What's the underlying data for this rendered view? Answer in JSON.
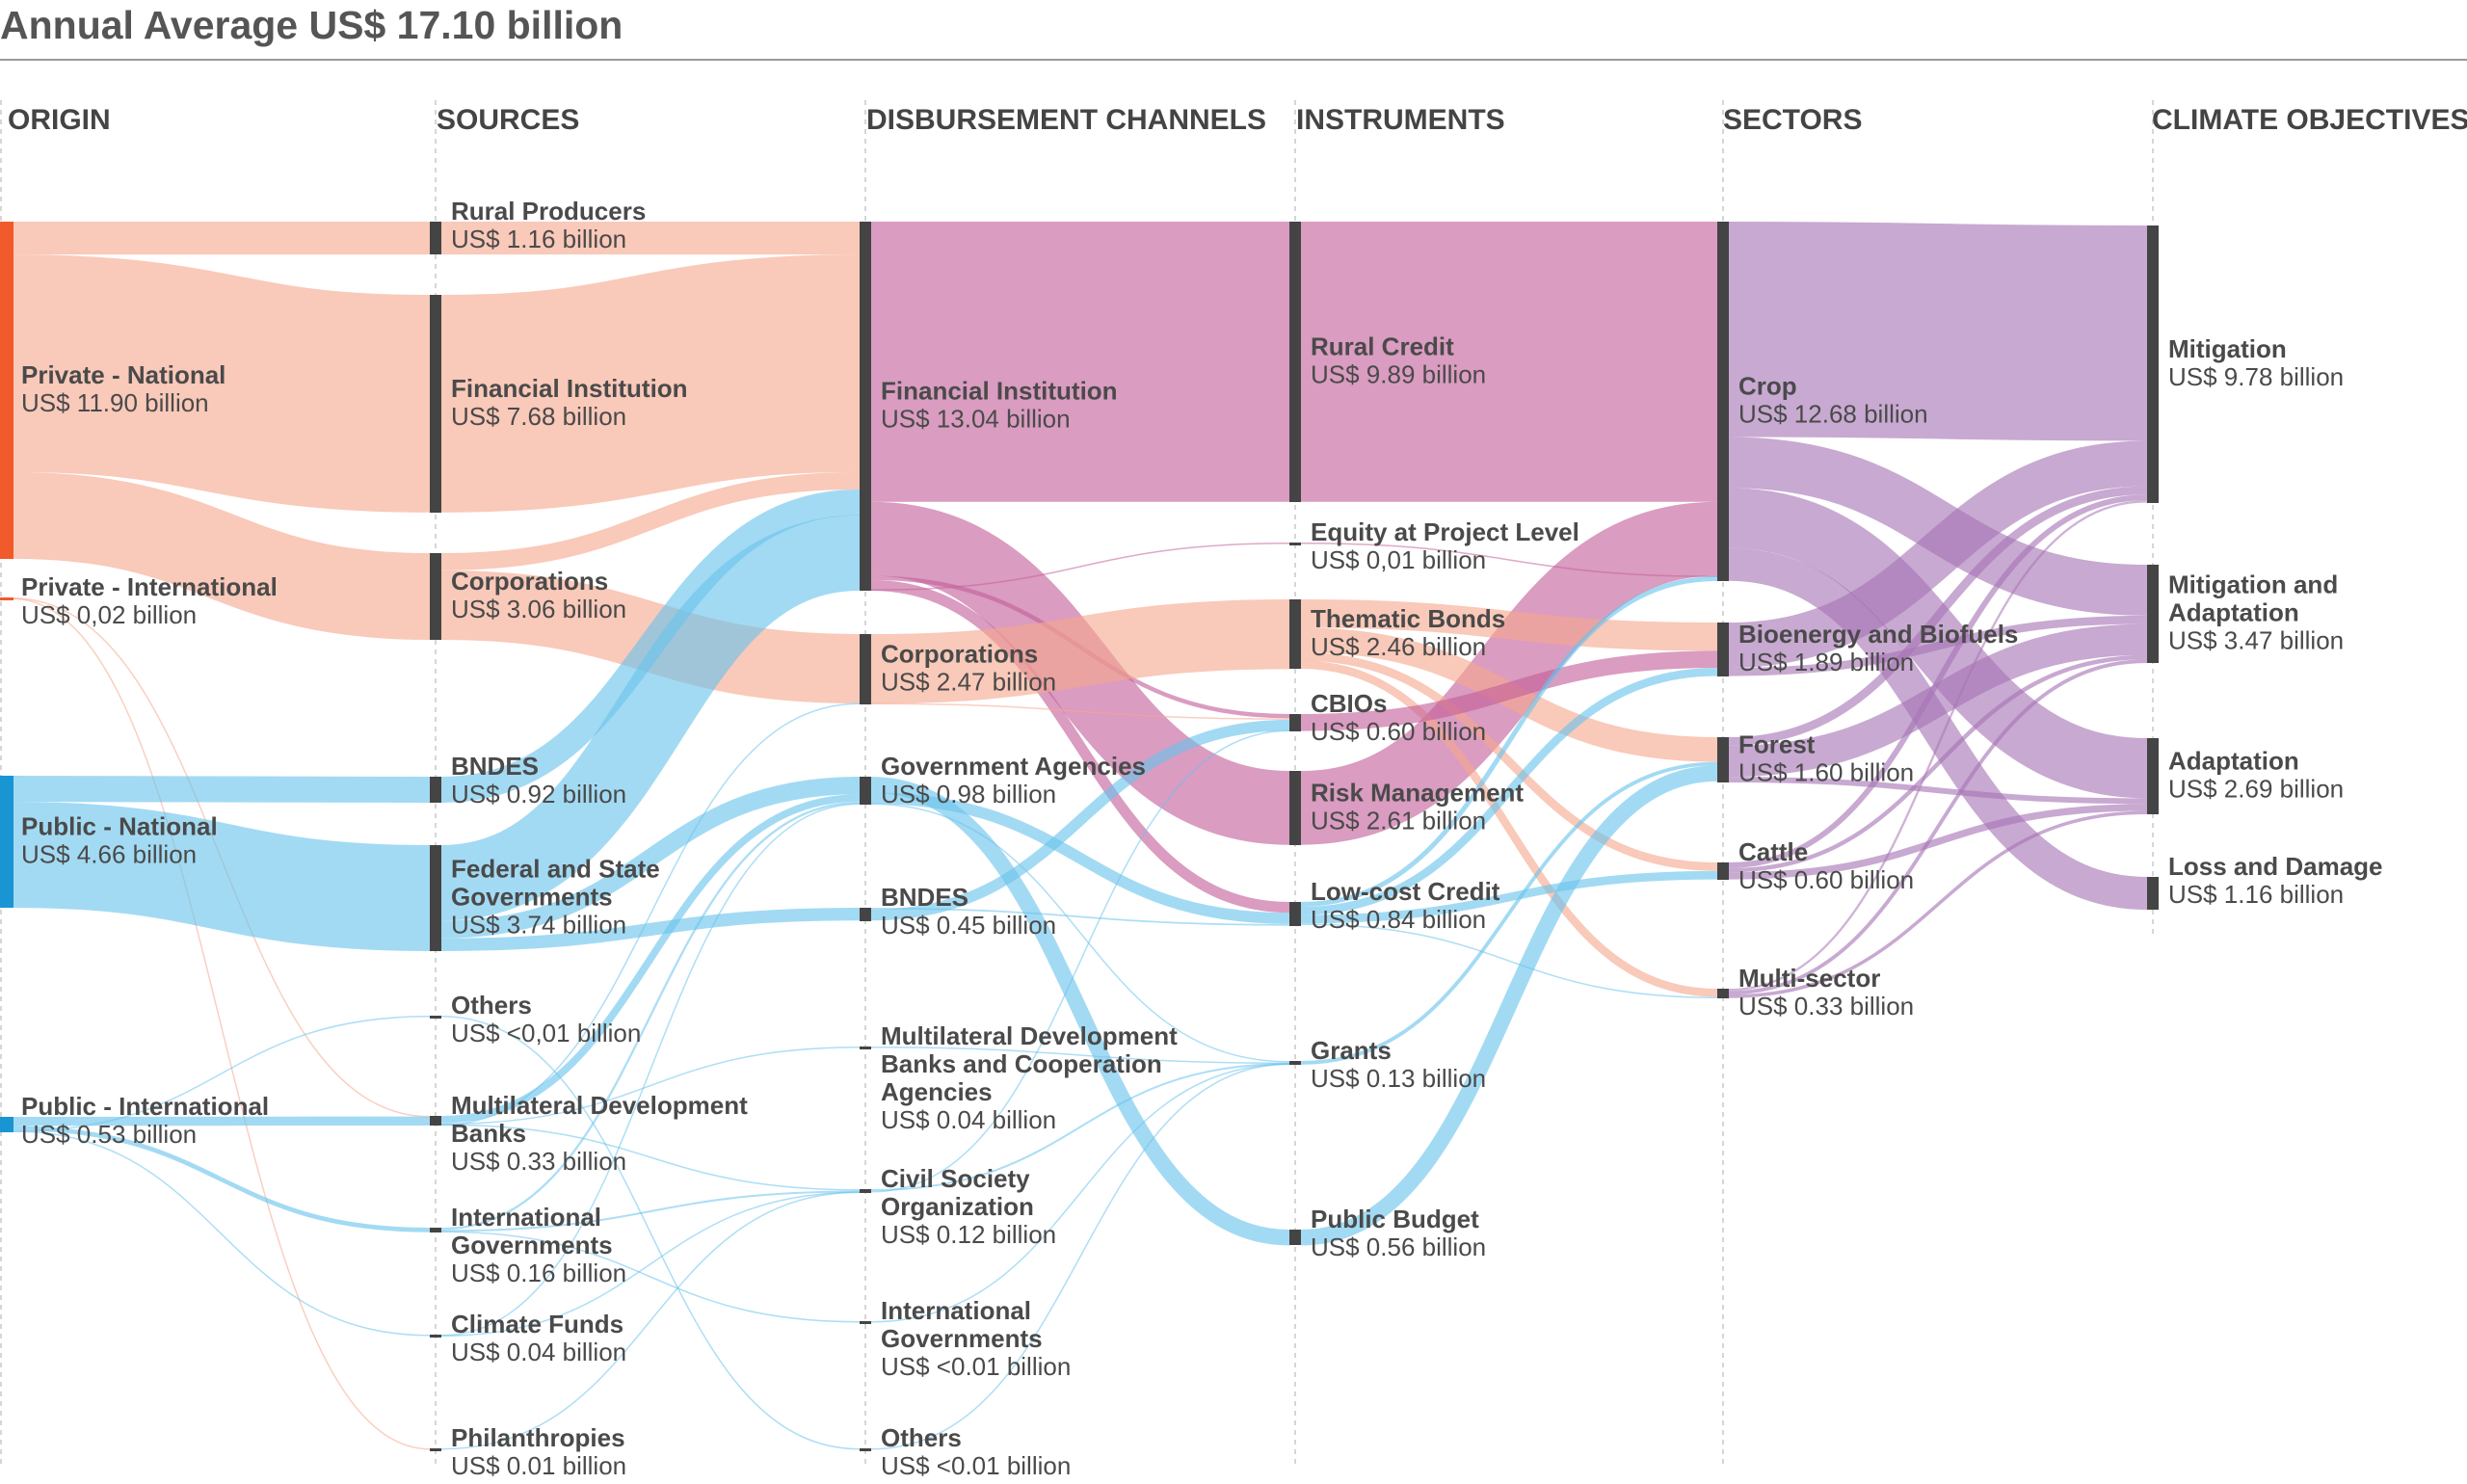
{
  "title": "Annual Average US$ 17.10 billion",
  "columns": [
    "ORIGIN",
    "SOURCES",
    "DISBURSEMENT CHANNELS",
    "INSTRUMENTS",
    "SECTORS",
    "CLIMATE OBJECTIVES"
  ],
  "colors": {
    "private": "#f5a88e",
    "public": "#69c3ec",
    "channel": "#c4609a",
    "sector": "#a774b5",
    "objective": "#b78fc5",
    "private_bar": "#f15a2b",
    "public_bar": "#1a95d4",
    "node_bar": "#444444"
  },
  "nodes": [
    {
      "id": "o_pn",
      "col": 0,
      "name": "Private - National",
      "value_label": "US$ 11.90 billion",
      "value": 11.9
    },
    {
      "id": "o_pi",
      "col": 0,
      "name": "Private - International",
      "value_label": "US$ 0,02 billion",
      "value": 0.02
    },
    {
      "id": "o_pun",
      "col": 0,
      "name": "Public - National",
      "value_label": "US$ 4.66 billion",
      "value": 4.66
    },
    {
      "id": "o_pui",
      "col": 0,
      "name": "Public - International",
      "value_label": "US$ 0.53 billion",
      "value": 0.53
    },
    {
      "id": "s_rp",
      "col": 1,
      "name": "Rural Producers",
      "value_label": "US$ 1.16 billion",
      "value": 1.16
    },
    {
      "id": "s_fi",
      "col": 1,
      "name": "Financial Institution",
      "value_label": "US$ 7.68 billion",
      "value": 7.68
    },
    {
      "id": "s_co",
      "col": 1,
      "name": "Corporations",
      "value_label": "US$ 3.06 billion",
      "value": 3.06
    },
    {
      "id": "s_bn",
      "col": 1,
      "name": "BNDES",
      "value_label": "US$ 0.92 billion",
      "value": 0.92
    },
    {
      "id": "s_fs",
      "col": 1,
      "name": "Federal and State Governments",
      "value_label": "US$ 3.74 billion",
      "value": 3.74
    },
    {
      "id": "s_ot",
      "col": 1,
      "name": "Others",
      "value_label": "US$ <0,01 billion",
      "value": 0.01
    },
    {
      "id": "s_md",
      "col": 1,
      "name": "Multilateral Development Banks",
      "value_label": "US$ 0.33 billion",
      "value": 0.33
    },
    {
      "id": "s_ig",
      "col": 1,
      "name": "International Governments",
      "value_label": "US$ 0.16 billion",
      "value": 0.16
    },
    {
      "id": "s_cf",
      "col": 1,
      "name": "Climate Funds",
      "value_label": "US$ 0.04 billion",
      "value": 0.04
    },
    {
      "id": "s_ph",
      "col": 1,
      "name": "Philanthropies",
      "value_label": "US$ 0.01 billion",
      "value": 0.01
    },
    {
      "id": "d_fi",
      "col": 2,
      "name": "Financial Institution",
      "value_label": "US$ 13.04 billion",
      "value": 13.04
    },
    {
      "id": "d_co",
      "col": 2,
      "name": "Corporations",
      "value_label": "US$ 2.47 billion",
      "value": 2.47
    },
    {
      "id": "d_ga",
      "col": 2,
      "name": "Government Agencies",
      "value_label": "US$ 0.98 billion",
      "value": 0.98
    },
    {
      "id": "d_bn",
      "col": 2,
      "name": "BNDES",
      "value_label": "US$ 0.45 billion",
      "value": 0.45
    },
    {
      "id": "d_md",
      "col": 2,
      "name": "Multilateral Development Banks and Cooperation Agencies",
      "value_label": "US$ 0.04 billion",
      "value": 0.04
    },
    {
      "id": "d_cs",
      "col": 2,
      "name": "Civil Society Organization",
      "value_label": "US$ 0.12 billion",
      "value": 0.12
    },
    {
      "id": "d_ig",
      "col": 2,
      "name": "International Governments",
      "value_label": "US$ <0.01 billion",
      "value": 0.01
    },
    {
      "id": "d_ot",
      "col": 2,
      "name": "Others",
      "value_label": "US$ <0.01 billion",
      "value": 0.01
    },
    {
      "id": "i_rc",
      "col": 3,
      "name": "Rural Credit",
      "value_label": "US$ 9.89 billion",
      "value": 9.89
    },
    {
      "id": "i_eq",
      "col": 3,
      "name": "Equity at Project Level",
      "value_label": "US$ 0,01 billion",
      "value": 0.01
    },
    {
      "id": "i_tb",
      "col": 3,
      "name": "Thematic Bonds",
      "value_label": "US$ 2.46 billion",
      "value": 2.46
    },
    {
      "id": "i_cb",
      "col": 3,
      "name": "CBIOs",
      "value_label": "US$ 0.60 billion",
      "value": 0.6
    },
    {
      "id": "i_rm",
      "col": 3,
      "name": "Risk Management",
      "value_label": "US$ 2.61 billion",
      "value": 2.61
    },
    {
      "id": "i_lc",
      "col": 3,
      "name": "Low-cost Credit",
      "value_label": "US$ 0.84 billion",
      "value": 0.84
    },
    {
      "id": "i_gr",
      "col": 3,
      "name": "Grants",
      "value_label": "US$ 0.13 billion",
      "value": 0.13
    },
    {
      "id": "i_pb",
      "col": 3,
      "name": "Public Budget",
      "value_label": "US$ 0.56 billion",
      "value": 0.56
    },
    {
      "id": "t_cr",
      "col": 4,
      "name": "Crop",
      "value_label": "US$ 12.68 billion",
      "value": 12.68
    },
    {
      "id": "t_bb",
      "col": 4,
      "name": "Bioenergy and Biofuels",
      "value_label": "US$ 1.89 billion",
      "value": 1.89
    },
    {
      "id": "t_fo",
      "col": 4,
      "name": "Forest",
      "value_label": "US$ 1.60 billion",
      "value": 1.6
    },
    {
      "id": "t_ca",
      "col": 4,
      "name": "Cattle",
      "value_label": "US$ 0.60 billion",
      "value": 0.6
    },
    {
      "id": "t_ms",
      "col": 4,
      "name": "Multi-sector",
      "value_label": "US$ 0.33 billion",
      "value": 0.33
    },
    {
      "id": "c_mi",
      "col": 5,
      "name": "Mitigation",
      "value_label": "US$ 9.78 billion",
      "value": 9.78
    },
    {
      "id": "c_ma",
      "col": 5,
      "name": "Mitigation and Adaptation",
      "value_label": "US$ 3.47 billion",
      "value": 3.47
    },
    {
      "id": "c_ad",
      "col": 5,
      "name": "Adaptation",
      "value_label": "US$ 2.69 billion",
      "value": 2.69
    },
    {
      "id": "c_ld",
      "col": 5,
      "name": "Loss and Damage",
      "value_label": "US$ 1.16 billion",
      "value": 1.16
    }
  ],
  "flows": [
    {
      "from": "o_pn",
      "to": "s_rp",
      "value": 1.16,
      "tone": "private"
    },
    {
      "from": "o_pn",
      "to": "s_fi",
      "value": 7.68,
      "tone": "private"
    },
    {
      "from": "o_pn",
      "to": "s_co",
      "value": 3.06,
      "tone": "private"
    },
    {
      "from": "o_pi",
      "to": "s_md",
      "value": 0.01,
      "tone": "private"
    },
    {
      "from": "o_pi",
      "to": "s_ph",
      "value": 0.01,
      "tone": "private"
    },
    {
      "from": "o_pun",
      "to": "s_bn",
      "value": 0.92,
      "tone": "public"
    },
    {
      "from": "o_pun",
      "to": "s_fs",
      "value": 3.74,
      "tone": "public"
    },
    {
      "from": "o_pui",
      "to": "s_md",
      "value": 0.32,
      "tone": "public"
    },
    {
      "from": "o_pui",
      "to": "s_ig",
      "value": 0.16,
      "tone": "public"
    },
    {
      "from": "o_pui",
      "to": "s_cf",
      "value": 0.04,
      "tone": "public"
    },
    {
      "from": "o_pui",
      "to": "s_ot",
      "value": 0.01,
      "tone": "public"
    },
    {
      "from": "s_rp",
      "to": "d_fi",
      "value": 1.16,
      "tone": "private"
    },
    {
      "from": "s_fi",
      "to": "d_fi",
      "value": 7.68,
      "tone": "private"
    },
    {
      "from": "s_co",
      "to": "d_fi",
      "value": 0.61,
      "tone": "private"
    },
    {
      "from": "s_co",
      "to": "d_co",
      "value": 2.45,
      "tone": "private"
    },
    {
      "from": "s_bn",
      "to": "d_fi",
      "value": 0.92,
      "tone": "public"
    },
    {
      "from": "s_fs",
      "to": "d_fi",
      "value": 2.67,
      "tone": "public"
    },
    {
      "from": "s_fs",
      "to": "d_ga",
      "value": 0.62,
      "tone": "public"
    },
    {
      "from": "s_fs",
      "to": "d_bn",
      "value": 0.45,
      "tone": "public"
    },
    {
      "from": "s_md",
      "to": "d_ga",
      "value": 0.26,
      "tone": "public"
    },
    {
      "from": "s_md",
      "to": "d_md",
      "value": 0.04,
      "tone": "public"
    },
    {
      "from": "s_md",
      "to": "d_co",
      "value": 0.02,
      "tone": "public"
    },
    {
      "from": "s_md",
      "to": "d_cs",
      "value": 0.01,
      "tone": "public"
    },
    {
      "from": "s_ig",
      "to": "d_ga",
      "value": 0.08,
      "tone": "public"
    },
    {
      "from": "s_ig",
      "to": "d_cs",
      "value": 0.07,
      "tone": "public"
    },
    {
      "from": "s_ig",
      "to": "d_ig",
      "value": 0.01,
      "tone": "public"
    },
    {
      "from": "s_cf",
      "to": "d_ga",
      "value": 0.02,
      "tone": "public"
    },
    {
      "from": "s_cf",
      "to": "d_cs",
      "value": 0.02,
      "tone": "public"
    },
    {
      "from": "s_ph",
      "to": "d_cs",
      "value": 0.01,
      "tone": "public"
    },
    {
      "from": "s_ot",
      "to": "d_ot",
      "value": 0.01,
      "tone": "public"
    },
    {
      "from": "d_fi",
      "to": "i_rc",
      "value": 9.89,
      "tone": "channel"
    },
    {
      "from": "d_fi",
      "to": "i_rm",
      "value": 2.61,
      "tone": "channel"
    },
    {
      "from": "d_fi",
      "to": "i_cb",
      "value": 0.15,
      "tone": "channel"
    },
    {
      "from": "d_fi",
      "to": "i_lc",
      "value": 0.38,
      "tone": "channel"
    },
    {
      "from": "d_fi",
      "to": "i_eq",
      "value": 0.01,
      "tone": "channel"
    },
    {
      "from": "d_co",
      "to": "i_tb",
      "value": 2.46,
      "tone": "private"
    },
    {
      "from": "d_co",
      "to": "i_cb",
      "value": 0.01,
      "tone": "private"
    },
    {
      "from": "d_ga",
      "to": "i_pb",
      "value": 0.56,
      "tone": "public"
    },
    {
      "from": "d_ga",
      "to": "i_lc",
      "value": 0.4,
      "tone": "public"
    },
    {
      "from": "d_ga",
      "to": "i_gr",
      "value": 0.02,
      "tone": "public"
    },
    {
      "from": "d_bn",
      "to": "i_lc",
      "value": 0.06,
      "tone": "public"
    },
    {
      "from": "d_bn",
      "to": "i_cb",
      "value": 0.39,
      "tone": "public"
    },
    {
      "from": "d_md",
      "to": "i_gr",
      "value": 0.04,
      "tone": "public"
    },
    {
      "from": "d_cs",
      "to": "i_gr",
      "value": 0.07,
      "tone": "public"
    },
    {
      "from": "d_cs",
      "to": "i_cb",
      "value": 0.05,
      "tone": "public"
    },
    {
      "from": "d_ig",
      "to": "i_gr",
      "value": 0.01,
      "tone": "public"
    },
    {
      "from": "d_ot",
      "to": "i_gr",
      "value": 0.01,
      "tone": "public"
    },
    {
      "from": "i_rc",
      "to": "t_cr",
      "value": 9.89,
      "tone": "channel"
    },
    {
      "from": "i_rm",
      "to": "t_cr",
      "value": 2.61,
      "tone": "channel"
    },
    {
      "from": "i_eq",
      "to": "t_cr",
      "value": 0.01,
      "tone": "channel"
    },
    {
      "from": "i_tb",
      "to": "t_bb",
      "value": 1.0,
      "tone": "private"
    },
    {
      "from": "i_tb",
      "to": "t_fo",
      "value": 0.87,
      "tone": "private"
    },
    {
      "from": "i_tb",
      "to": "t_ca",
      "value": 0.3,
      "tone": "private"
    },
    {
      "from": "i_tb",
      "to": "t_ms",
      "value": 0.29,
      "tone": "private"
    },
    {
      "from": "i_cb",
      "to": "t_bb",
      "value": 0.6,
      "tone": "channel"
    },
    {
      "from": "i_lc",
      "to": "t_cr",
      "value": 0.17,
      "tone": "public"
    },
    {
      "from": "i_lc",
      "to": "t_bb",
      "value": 0.29,
      "tone": "public"
    },
    {
      "from": "i_lc",
      "to": "t_ca",
      "value": 0.3,
      "tone": "public"
    },
    {
      "from": "i_lc",
      "to": "t_ms",
      "value": 0.04,
      "tone": "public"
    },
    {
      "from": "i_gr",
      "to": "t_fo",
      "value": 0.13,
      "tone": "public"
    },
    {
      "from": "i_pb",
      "to": "t_fo",
      "value": 0.56,
      "tone": "public"
    },
    {
      "from": "t_cr",
      "to": "c_mi",
      "value": 7.6,
      "tone": "sector"
    },
    {
      "from": "t_cr",
      "to": "c_ma",
      "value": 1.8,
      "tone": "sector"
    },
    {
      "from": "t_cr",
      "to": "c_ad",
      "value": 2.12,
      "tone": "sector"
    },
    {
      "from": "t_cr",
      "to": "c_ld",
      "value": 1.16,
      "tone": "sector"
    },
    {
      "from": "t_bb",
      "to": "c_mi",
      "value": 1.6,
      "tone": "sector"
    },
    {
      "from": "t_bb",
      "to": "c_ma",
      "value": 0.29,
      "tone": "sector"
    },
    {
      "from": "t_fo",
      "to": "c_mi",
      "value": 0.3,
      "tone": "sector"
    },
    {
      "from": "t_fo",
      "to": "c_ma",
      "value": 1.1,
      "tone": "sector"
    },
    {
      "from": "t_fo",
      "to": "c_ad",
      "value": 0.2,
      "tone": "sector"
    },
    {
      "from": "t_ca",
      "to": "c_mi",
      "value": 0.2,
      "tone": "sector"
    },
    {
      "from": "t_ca",
      "to": "c_ma",
      "value": 0.15,
      "tone": "sector"
    },
    {
      "from": "t_ca",
      "to": "c_ad",
      "value": 0.25,
      "tone": "sector"
    },
    {
      "from": "t_ms",
      "to": "c_mi",
      "value": 0.08,
      "tone": "sector"
    },
    {
      "from": "t_ms",
      "to": "c_ma",
      "value": 0.13,
      "tone": "sector"
    },
    {
      "from": "t_ms",
      "to": "c_ad",
      "value": 0.12,
      "tone": "sector"
    }
  ]
}
